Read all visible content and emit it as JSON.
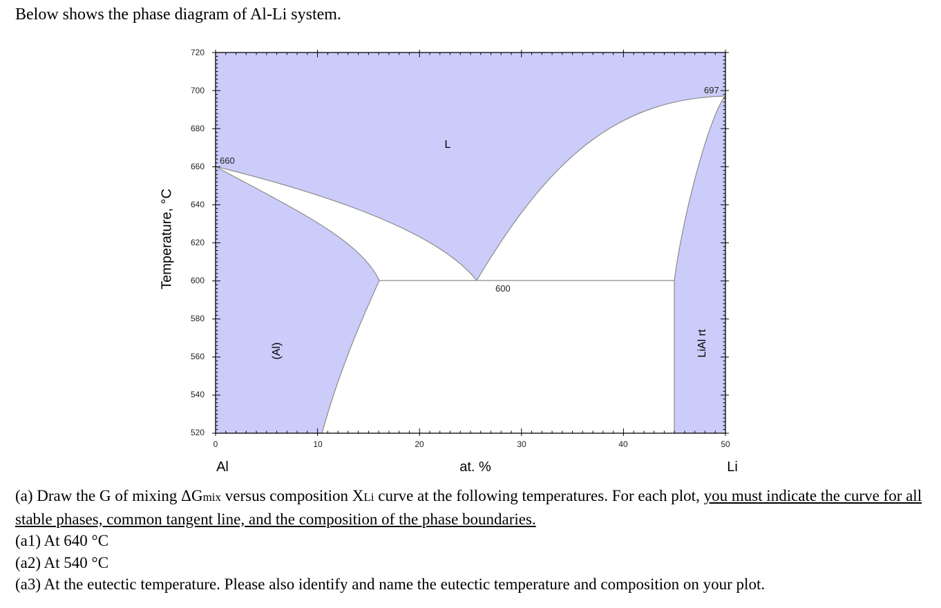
{
  "intro": "Below shows the phase diagram of Al-Li system.",
  "diagram": {
    "y_axis_label": "Temperature, °C",
    "x_axis_label": "at. %",
    "left_element": "Al",
    "right_element": "Li",
    "x_ticks": [
      "0",
      "10",
      "20",
      "30",
      "40",
      "50"
    ],
    "y_ticks": [
      "720",
      "700",
      "680",
      "660",
      "640",
      "620",
      "600",
      "580",
      "560",
      "540",
      "520"
    ],
    "regions": {
      "liquid": "L",
      "al_solid": "(Al)",
      "lial": "LiAl rt"
    },
    "points": {
      "al_melt": "660",
      "eutectic": "600",
      "lial_melt": "697"
    },
    "fill_color": "#ccccfa",
    "line_color": "#8a8a8a"
  },
  "questions": {
    "a_part1": "(a) Draw the G of mixing ΔG",
    "a_sub_mix": "mix",
    "a_part2": " versus composition X",
    "a_sub_li": "Li",
    "a_part3": " curve at the following temperatures. For each plot, ",
    "a_underlined": "you must indicate the curve for all stable phases, common tangent line, and the composition of the phase boundaries.",
    "a1": "(a1) At 640 °C",
    "a2": "(a2) At 540 °C",
    "a3": "(a3) At the eutectic temperature. Please also identify and name the eutectic temperature and composition on your plot."
  }
}
